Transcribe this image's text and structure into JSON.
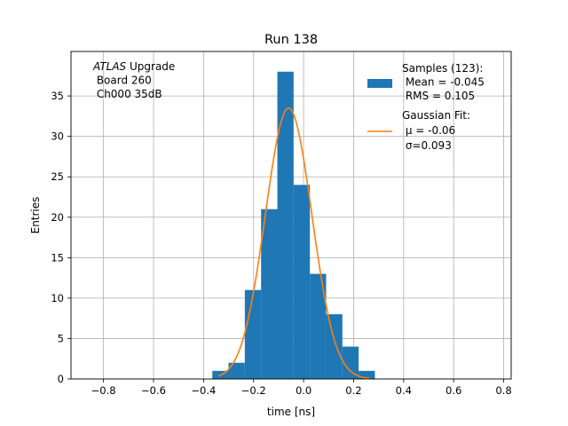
{
  "chart_data": {
    "type": "bar",
    "title": "Run 138",
    "xlabel": "time [ns]",
    "ylabel": "Entries",
    "xlim": [
      -0.93,
      0.83
    ],
    "ylim": [
      0,
      40.5
    ],
    "grid": true,
    "legend_position": "top-right",
    "xticks": [
      -0.8,
      -0.6,
      -0.4,
      -0.2,
      0.0,
      0.2,
      0.4,
      0.6,
      0.8
    ],
    "xtick_labels": [
      "−0.8",
      "−0.6",
      "−0.4",
      "−0.2",
      "0.0",
      "0.2",
      "0.4",
      "0.6",
      "0.8"
    ],
    "yticks": [
      0,
      5,
      10,
      15,
      20,
      25,
      30,
      35
    ],
    "ytick_labels": [
      "0",
      "5",
      "10",
      "15",
      "20",
      "25",
      "30",
      "35"
    ],
    "annotation_lines": [
      {
        "italic": "ATLAS",
        "rest": " Upgrade"
      },
      {
        "italic": "",
        "rest": " Board 260"
      },
      {
        "italic": "",
        "rest": " Ch000 35dB"
      }
    ],
    "histogram": {
      "name": "Samples (123):",
      "legend_lines": [
        "Samples (123):",
        " Mean = -0.045",
        " RMS = 0.105"
      ],
      "color": "#1f77b4",
      "bin_edges": [
        -0.365,
        -0.3,
        -0.235,
        -0.17,
        -0.105,
        -0.04,
        0.025,
        0.09,
        0.155,
        0.22,
        0.285
      ],
      "counts": [
        1,
        2,
        11,
        21,
        38,
        24,
        13,
        8,
        4,
        1
      ]
    },
    "fit": {
      "name": "Gaussian Fit:",
      "legend_lines": [
        "Gaussian Fit:",
        " μ = -0.06",
        " σ=0.093"
      ],
      "color": "#ff7f0e",
      "mu": -0.06,
      "sigma": 0.093,
      "amplitude": 33.5,
      "x_range": [
        -0.34,
        0.265
      ]
    }
  }
}
